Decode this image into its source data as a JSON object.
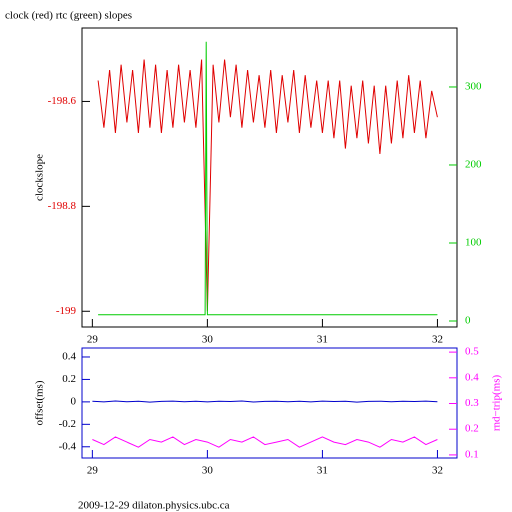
{
  "chart_data": [
    {
      "type": "line",
      "title": "clock (red) rtc (green) slopes",
      "ylabel": "clockslope",
      "xlim": [
        28.91,
        32.17
      ],
      "xticks": [
        29,
        30,
        31,
        32
      ],
      "ylim": [
        -199.03,
        -198.46
      ],
      "yticks": [
        -199,
        -198.8,
        -198.6
      ],
      "y2lim": [
        -7.7,
        375.6
      ],
      "y2ticks": [
        0,
        100,
        200,
        300
      ],
      "series": [
        {
          "color": "#e00000",
          "x": [
            29.05,
            29.1,
            29.15,
            29.2,
            29.25,
            29.3,
            29.35,
            29.4,
            29.45,
            29.5,
            29.55,
            29.6,
            29.65,
            29.7,
            29.75,
            29.8,
            29.85,
            29.9,
            29.95,
            30.0,
            30.05,
            30.1,
            30.15,
            30.2,
            30.25,
            30.3,
            30.35,
            30.4,
            30.45,
            30.5,
            30.55,
            30.6,
            30.65,
            30.7,
            30.75,
            30.8,
            30.85,
            30.9,
            30.95,
            31.0,
            31.05,
            31.1,
            31.15,
            31.2,
            31.25,
            31.3,
            31.35,
            31.4,
            31.45,
            31.5,
            31.55,
            31.6,
            31.65,
            31.7,
            31.75,
            31.8,
            31.85,
            31.9,
            31.95,
            32.0
          ],
          "values": [
            -198.56,
            -198.65,
            -198.54,
            -198.66,
            -198.53,
            -198.64,
            -198.54,
            -198.66,
            -198.52,
            -198.65,
            -198.53,
            -198.66,
            -198.54,
            -198.65,
            -198.53,
            -198.64,
            -198.54,
            -198.65,
            -198.52,
            -199.0,
            -198.53,
            -198.64,
            -198.52,
            -198.63,
            -198.53,
            -198.65,
            -198.54,
            -198.64,
            -198.55,
            -198.65,
            -198.54,
            -198.66,
            -198.55,
            -198.64,
            -198.54,
            -198.66,
            -198.55,
            -198.65,
            -198.56,
            -198.66,
            -198.56,
            -198.67,
            -198.56,
            -198.69,
            -198.57,
            -198.67,
            -198.56,
            -198.68,
            -198.57,
            -198.7,
            -198.57,
            -198.68,
            -198.56,
            -198.67,
            -198.55,
            -198.66,
            -198.56,
            -198.67,
            -198.58,
            -198.63
          ]
        },
        {
          "color": "#00cc00",
          "axis": "y2",
          "x": [
            29.05,
            29.98,
            29.99,
            30.0,
            32.0
          ],
          "values": [
            8,
            8,
            358,
            8,
            8
          ]
        }
      ]
    },
    {
      "type": "line",
      "ylabel": "offset(ms)",
      "y2label": "rnd−trip(ms)",
      "xlim": [
        28.91,
        32.17
      ],
      "xticks": [
        29,
        30,
        31,
        32
      ],
      "ylim": [
        -0.5,
        0.48
      ],
      "yticks": [
        -0.4,
        -0.2,
        0,
        0.2,
        0.4
      ],
      "y2lim": [
        0.088,
        0.516
      ],
      "y2ticks": [
        0.1,
        0.2,
        0.3,
        0.4,
        0.5
      ],
      "series": [
        {
          "color": "#0000cc",
          "x": [
            29.0,
            29.1,
            29.2,
            29.3,
            29.4,
            29.5,
            29.6,
            29.7,
            29.8,
            29.9,
            30.0,
            30.1,
            30.2,
            30.3,
            30.4,
            30.5,
            30.6,
            30.7,
            30.8,
            30.9,
            31.0,
            31.1,
            31.2,
            31.3,
            31.4,
            31.5,
            31.6,
            31.7,
            31.8,
            31.9,
            32.0
          ],
          "values": [
            0.005,
            0.0,
            0.008,
            0.002,
            0.006,
            -0.002,
            0.004,
            0.007,
            0.001,
            0.005,
            0.0,
            0.006,
            0.003,
            0.008,
            -0.001,
            0.004,
            0.006,
            0.002,
            0.005,
            0.0,
            0.007,
            0.003,
            0.005,
            -0.002,
            0.004,
            0.006,
            0.001,
            0.005,
            0.003,
            0.007,
            0.002
          ]
        },
        {
          "color": "#ff00ff",
          "axis": "y2",
          "x": [
            29.0,
            29.1,
            29.2,
            29.3,
            29.4,
            29.5,
            29.6,
            29.7,
            29.8,
            29.9,
            30.0,
            30.1,
            30.2,
            30.3,
            30.4,
            30.5,
            30.6,
            30.7,
            30.8,
            30.9,
            31.0,
            31.1,
            31.2,
            31.3,
            31.4,
            31.5,
            31.6,
            31.7,
            31.8,
            31.9,
            32.0
          ],
          "values": [
            0.16,
            0.14,
            0.17,
            0.15,
            0.13,
            0.16,
            0.15,
            0.17,
            0.14,
            0.16,
            0.15,
            0.13,
            0.16,
            0.15,
            0.17,
            0.14,
            0.15,
            0.16,
            0.13,
            0.15,
            0.17,
            0.15,
            0.14,
            0.16,
            0.15,
            0.13,
            0.16,
            0.15,
            0.17,
            0.14,
            0.16
          ]
        }
      ]
    }
  ],
  "footer": "2009-12-29 dilaton.physics.ubc.ca"
}
